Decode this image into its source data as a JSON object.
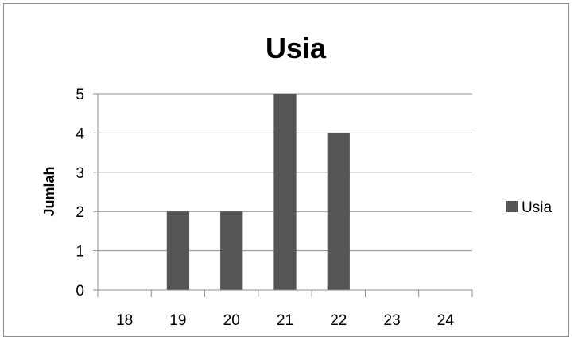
{
  "chart_data": {
    "type": "bar",
    "title": "Usia",
    "xlabel": "",
    "ylabel": "Jumlah",
    "categories": [
      "18",
      "19",
      "20",
      "21",
      "22",
      "23",
      "24"
    ],
    "series": [
      {
        "name": "Usia",
        "values": [
          0,
          2,
          2,
          5,
          4,
          0,
          0
        ],
        "color": "#555555"
      }
    ],
    "yticks": [
      0,
      1,
      2,
      3,
      4,
      5
    ],
    "ylim": [
      0,
      5
    ],
    "grid": true,
    "legend": "right"
  }
}
